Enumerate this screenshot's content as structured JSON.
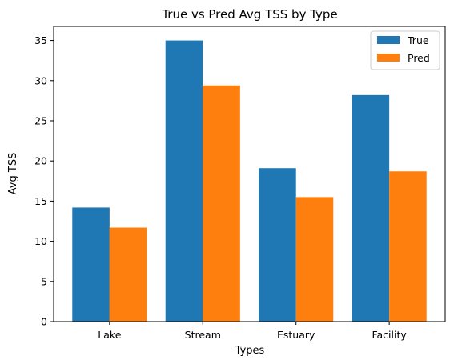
{
  "chart_data": {
    "type": "bar",
    "title": "True vs Pred Avg TSS by Type",
    "xlabel": "Types",
    "ylabel": "Avg TSS",
    "categories": [
      "Lake",
      "Stream",
      "Estuary",
      "Facility"
    ],
    "series": [
      {
        "name": "True",
        "values": [
          14.2,
          35.0,
          19.1,
          28.2
        ],
        "color": "#1f77b4"
      },
      {
        "name": "Pred",
        "values": [
          11.7,
          29.4,
          15.5,
          18.7
        ],
        "color": "#ff7f0e"
      }
    ],
    "ylim": [
      0,
      36.75
    ],
    "yticks": [
      0,
      5,
      10,
      15,
      20,
      25,
      30,
      35
    ],
    "grid": false,
    "legend_position": "top-right"
  }
}
